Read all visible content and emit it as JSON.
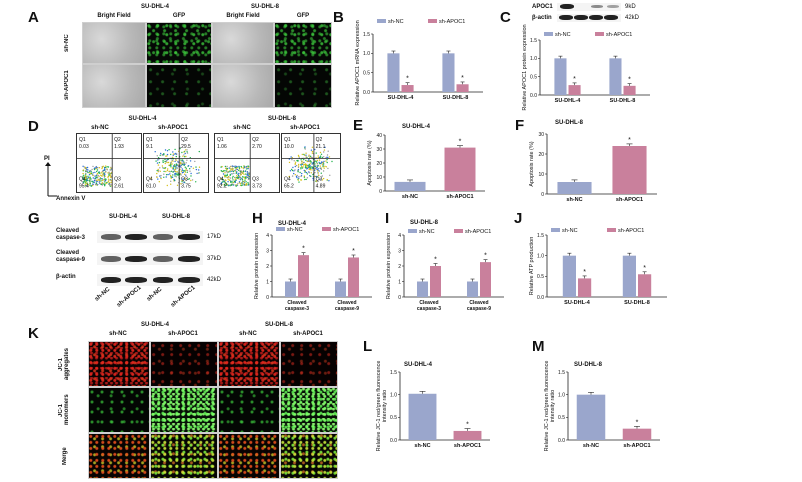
{
  "panels": {
    "A": {
      "label": "A",
      "group_left": "SU-DHL-4",
      "group_right": "SU-DHL-8",
      "cols": [
        "Bright Field",
        "GFP",
        "Bright Field",
        "GFP"
      ],
      "rows": [
        "sh-NC",
        "sh-APOC1"
      ]
    },
    "B": {
      "label": "B",
      "chart_data": {
        "type": "bar",
        "categories": [
          "SU-DHL-4",
          "SU-DHL-8"
        ],
        "series": [
          {
            "name": "sh-NC",
            "values": [
              1.0,
              1.0
            ]
          },
          {
            "name": "sh-APOC1",
            "values": [
              0.18,
              0.2
            ]
          }
        ],
        "ylabel": "Relative APOC1 mRNA expression",
        "ylim": [
          0,
          1.5
        ],
        "yticks": [
          "0.0",
          "0.5",
          "1.0",
          "1.5"
        ],
        "stars": [
          "*",
          "*"
        ]
      }
    },
    "C": {
      "label": "C",
      "blot_labels": [
        "APOC1",
        "β-actin"
      ],
      "blot_sizes": [
        "9kD",
        "42kD"
      ],
      "chart_data": {
        "type": "bar",
        "categories": [
          "SU-DHL-4",
          "SU-DHL-8"
        ],
        "series": [
          {
            "name": "sh-NC",
            "values": [
              1.0,
              1.0
            ]
          },
          {
            "name": "sh-APOC1",
            "values": [
              0.27,
              0.25
            ]
          }
        ],
        "ylabel": "Relative APOC1 protein expression",
        "ylim": [
          0,
          1.5
        ],
        "yticks": [
          "0.0",
          "0.5",
          "1.0",
          "1.5"
        ],
        "stars": [
          "*",
          "*"
        ]
      }
    },
    "D": {
      "label": "D",
      "group_left": "SU-DHL-4",
      "group_right": "SU-DHL-8",
      "subtitles": [
        "sh-NC",
        "sh-APOC1",
        "sh-NC",
        "sh-APOC1"
      ],
      "y_axis": "PI",
      "x_axis": "Annexin V",
      "plots": [
        {
          "q1": "Q1",
          "q1v": "0.03",
          "q2": "Q2",
          "q2v": "1.93",
          "q3": "Q3",
          "q3v": "2.61",
          "q4": "Q4",
          "q4v": "95.4"
        },
        {
          "q1": "Q1",
          "q1v": "9.1",
          "q2": "Q2",
          "q2v": "29.5",
          "q3": "Q3",
          "q3v": "3.75",
          "q4": "Q4",
          "q4v": "61.0"
        },
        {
          "q1": "Q1",
          "q1v": "1.06",
          "q2": "Q2",
          "q2v": "2.70",
          "q3": "Q3",
          "q3v": "3.73",
          "q4": "Q4",
          "q4v": "92.2"
        },
        {
          "q1": "Q1",
          "q1v": "10.0",
          "q2": "Q2",
          "q2v": "21.1",
          "q3": "Q3",
          "q3v": "4.89",
          "q4": "Q4",
          "q4v": "65.2"
        }
      ]
    },
    "E": {
      "label": "E",
      "chart_data": {
        "type": "bar",
        "title": "SU-DHL-4",
        "categories": [
          "sh-NC",
          "sh-APOC1"
        ],
        "values": [
          6.5,
          31.0
        ],
        "ylabel": "Apoptosis rate (%)",
        "ylim": [
          0,
          40
        ],
        "yticks": [
          "0",
          "10",
          "20",
          "30",
          "40"
        ],
        "stars": [
          "",
          "*"
        ]
      }
    },
    "F": {
      "label": "F",
      "chart_data": {
        "type": "bar",
        "title": "SU-DHL-8",
        "categories": [
          "sh-NC",
          "sh-APOC1"
        ],
        "values": [
          6.0,
          24.0
        ],
        "ylabel": "Apoptosis rate (%)",
        "ylim": [
          0,
          30
        ],
        "yticks": [
          "0",
          "10",
          "20",
          "30"
        ],
        "stars": [
          "",
          "*"
        ]
      }
    },
    "G": {
      "label": "G",
      "group_left": "SU-DHL-4",
      "group_right": "SU-DHL-8",
      "row_labels": [
        "Cleaved caspase-3",
        "Cleaved caspase-9",
        "β-actin"
      ],
      "sizes": [
        "17kD",
        "37kD",
        "42kD"
      ],
      "lanes": [
        "sh-NC",
        "sh-APOC1",
        "sh-NC",
        "sh-APOC1"
      ]
    },
    "H": {
      "label": "H",
      "chart_data": {
        "type": "bar",
        "title": "SU-DHL-4",
        "categories": [
          "Cleaved caspase-3",
          "Cleaved caspase-9"
        ],
        "series": [
          {
            "name": "sh-NC",
            "values": [
              1.0,
              1.0
            ]
          },
          {
            "name": "sh-APOC1",
            "values": [
              2.7,
              2.55
            ]
          }
        ],
        "ylabel": "Relative protein expression",
        "ylim": [
          0,
          4
        ],
        "yticks": [
          "0",
          "1",
          "2",
          "3",
          "4"
        ],
        "stars": [
          "*",
          "*"
        ]
      }
    },
    "I": {
      "label": "I",
      "chart_data": {
        "type": "bar",
        "title": "SU-DHL-8",
        "categories": [
          "Cleaved caspase-3",
          "Cleaved caspase-9"
        ],
        "series": [
          {
            "name": "sh-NC",
            "values": [
              1.0,
              1.0
            ]
          },
          {
            "name": "sh-APOC1",
            "values": [
              2.0,
              2.25
            ]
          }
        ],
        "ylabel": "Relative protein expression",
        "ylim": [
          0,
          4
        ],
        "yticks": [
          "0",
          "1",
          "2",
          "3",
          "4"
        ],
        "stars": [
          "*",
          "*"
        ]
      }
    },
    "J": {
      "label": "J",
      "chart_data": {
        "type": "bar",
        "categories": [
          "SU-DHL-4",
          "SU-DHL-8"
        ],
        "series": [
          {
            "name": "sh-NC",
            "values": [
              1.0,
              1.0
            ]
          },
          {
            "name": "sh-APOC1",
            "values": [
              0.45,
              0.55
            ]
          }
        ],
        "ylabel": "Relative ATP production",
        "ylim": [
          0,
          1.5
        ],
        "yticks": [
          "0.0",
          "0.5",
          "1.0",
          "1.5"
        ],
        "stars": [
          "*",
          "*"
        ]
      }
    },
    "K": {
      "label": "K",
      "group_left": "SU-DHL-4",
      "group_right": "SU-DHL-8",
      "cols": [
        "sh-NC",
        "sh-APOC1",
        "sh-NC",
        "sh-APOC1"
      ],
      "rows": [
        "JC-1 aggregates",
        "JC-1 monomers",
        "Merge"
      ]
    },
    "L": {
      "label": "L",
      "chart_data": {
        "type": "bar",
        "title": "SU-DHL-4",
        "categories": [
          "sh-NC",
          "sh-APOC1"
        ],
        "values": [
          1.02,
          0.2
        ],
        "ylabel": "Relative JC-1 red/green fluorescence intensity ratio",
        "ylim": [
          0,
          1.5
        ],
        "yticks": [
          "0.0",
          "0.5",
          "1.0",
          "1.5"
        ],
        "stars": [
          "",
          "*"
        ]
      }
    },
    "M": {
      "label": "M",
      "chart_data": {
        "type": "bar",
        "title": "SU-DHL-8",
        "categories": [
          "sh-NC",
          "sh-APOC1"
        ],
        "values": [
          1.0,
          0.25
        ],
        "ylabel": "Relative JC-1 red/green fluorescence intensity ratio",
        "ylim": [
          0,
          1.5
        ],
        "yticks": [
          "0.0",
          "0.5",
          "1.0",
          "1.5"
        ],
        "stars": [
          "",
          "*"
        ]
      }
    }
  },
  "colors": {
    "sh_nc": "#9aa6cc",
    "sh_apoc1": "#c9809c"
  }
}
